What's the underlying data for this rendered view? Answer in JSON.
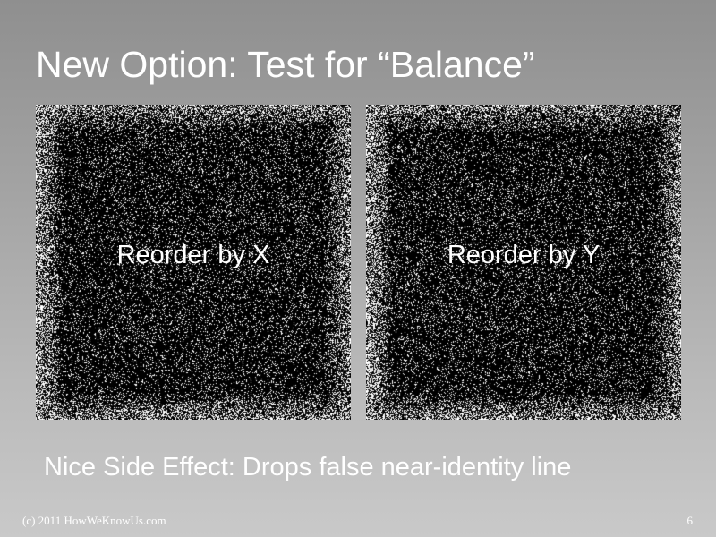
{
  "slide": {
    "title": "New Option: Test for “Balance”",
    "panels": [
      {
        "label": "Reorder by X"
      },
      {
        "label": "Reorder by Y"
      }
    ],
    "caption": "Nice Side Effect: Drops false near-identity line",
    "footer": {
      "copyright": "(c) 2011 HowWeKnowUs.com",
      "page_number": "6"
    }
  },
  "colors": {
    "panel_background": "#000000",
    "noise_dots": "#ffffff",
    "text": "#ffffff"
  }
}
